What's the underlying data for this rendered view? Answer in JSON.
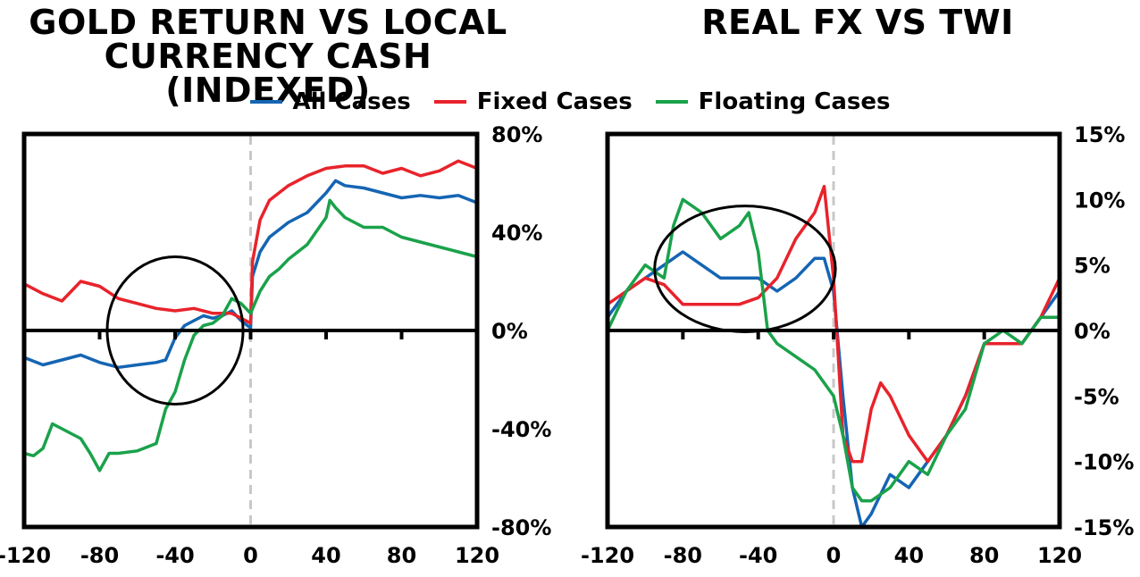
{
  "legend": {
    "all_label": "All Cases",
    "fixed_label": "Fixed Cases",
    "floating_label": "Floating Cases"
  },
  "colors": {
    "all": "#1565b3",
    "fixed": "#e8232b",
    "floating": "#1aa24a"
  },
  "chart_data": [
    {
      "type": "line",
      "title_lines": [
        "GOLD RETURN VS LOCAL",
        "CURRENCY CASH (INDEXED)"
      ],
      "xlim": [
        -120,
        120
      ],
      "ylim": [
        -80,
        80
      ],
      "x_ticks": [
        -120,
        -80,
        -40,
        0,
        40,
        80,
        120
      ],
      "y_ticks": [
        80,
        40,
        0,
        -40,
        -80
      ],
      "y_tick_labels": [
        "80%",
        "40%",
        "0%",
        "-40%",
        "-80%"
      ],
      "y_axis_side": "right",
      "grid": false,
      "reference_line_x": 0,
      "highlight_ellipse": {
        "cx": -40,
        "cy": 0,
        "rx": 36,
        "ry": 30
      },
      "series": [
        {
          "name": "All Cases",
          "key": "all",
          "x": [
            -120,
            -110,
            -100,
            -90,
            -80,
            -70,
            -60,
            -50,
            -45,
            -40,
            -35,
            -30,
            -25,
            -20,
            -15,
            -10,
            -5,
            0,
            1,
            5,
            10,
            15,
            20,
            30,
            40,
            45,
            50,
            60,
            70,
            80,
            90,
            100,
            110,
            120
          ],
          "y": [
            -11,
            -14,
            -12,
            -10,
            -13,
            -15,
            -14,
            -13,
            -12,
            -3,
            2,
            4,
            6,
            5,
            6,
            8,
            4,
            1,
            22,
            32,
            38,
            41,
            44,
            48,
            56,
            61,
            59,
            58,
            56,
            54,
            55,
            54,
            55,
            52
          ]
        },
        {
          "name": "Fixed Cases",
          "key": "fixed",
          "x": [
            -120,
            -110,
            -100,
            -90,
            -80,
            -70,
            -60,
            -50,
            -40,
            -30,
            -20,
            -10,
            -5,
            0,
            1,
            5,
            10,
            15,
            20,
            30,
            40,
            50,
            60,
            70,
            80,
            90,
            100,
            110,
            120
          ],
          "y": [
            19,
            15,
            12,
            20,
            18,
            13,
            11,
            9,
            8,
            9,
            7,
            7,
            5,
            3,
            28,
            45,
            53,
            56,
            59,
            63,
            66,
            67,
            67,
            64,
            66,
            63,
            65,
            69,
            66
          ]
        },
        {
          "name": "Floating Cases",
          "key": "floating",
          "x": [
            -120,
            -115,
            -110,
            -105,
            -100,
            -95,
            -90,
            -85,
            -80,
            -75,
            -70,
            -60,
            -50,
            -45,
            -40,
            -35,
            -30,
            -25,
            -20,
            -15,
            -10,
            -5,
            0,
            5,
            10,
            15,
            20,
            30,
            40,
            42,
            45,
            50,
            60,
            70,
            80,
            90,
            100,
            110,
            120
          ],
          "y": [
            -50,
            -51,
            -48,
            -38,
            -40,
            -42,
            -44,
            -50,
            -57,
            -50,
            -50,
            -49,
            -46,
            -32,
            -25,
            -12,
            -2,
            2,
            3,
            6,
            13,
            11,
            7,
            16,
            22,
            25,
            29,
            35,
            46,
            53,
            50,
            46,
            42,
            42,
            38,
            36,
            34,
            32,
            30
          ]
        }
      ]
    },
    {
      "type": "line",
      "title": "REAL FX VS TWI",
      "xlim": [
        -120,
        120
      ],
      "ylim": [
        -15,
        15
      ],
      "x_ticks": [
        -120,
        -80,
        -40,
        0,
        40,
        80,
        120
      ],
      "y_ticks": [
        15,
        10,
        5,
        0,
        -5,
        -10,
        -15
      ],
      "y_tick_labels": [
        "15%",
        "10%",
        "5%",
        "0%",
        "-5%",
        "-10%",
        "-15%"
      ],
      "y_axis_side": "right",
      "grid": false,
      "reference_line_x": 0,
      "highlight_ellipse": {
        "cx": -47,
        "cy": 4.7,
        "rx": 48,
        "ry": 4.8
      },
      "series": [
        {
          "name": "All Cases",
          "key": "all",
          "x": [
            -120,
            -110,
            -100,
            -90,
            -80,
            -70,
            -60,
            -50,
            -40,
            -30,
            -20,
            -10,
            -5,
            0,
            5,
            10,
            15,
            20,
            30,
            40,
            50,
            60,
            70,
            80,
            90,
            100,
            110,
            120
          ],
          "y": [
            1,
            3,
            4,
            5,
            6,
            5,
            4,
            4,
            4,
            3,
            4,
            5.5,
            5.5,
            3,
            -5,
            -12,
            -15,
            -14,
            -11,
            -12,
            -10,
            -8,
            -5,
            -1,
            -1,
            -1,
            1,
            3
          ]
        },
        {
          "name": "Fixed Cases",
          "key": "fixed",
          "x": [
            -120,
            -110,
            -100,
            -90,
            -80,
            -70,
            -60,
            -50,
            -40,
            -30,
            -20,
            -10,
            -5,
            0,
            5,
            10,
            15,
            20,
            25,
            30,
            40,
            50,
            60,
            70,
            80,
            90,
            100,
            110,
            120
          ],
          "y": [
            2,
            3,
            4,
            3.5,
            2,
            2,
            2,
            2,
            2.5,
            4,
            7,
            9,
            11,
            4,
            -8,
            -10,
            -10,
            -6,
            -4,
            -5,
            -8,
            -10,
            -8,
            -5,
            -1,
            -1,
            -1,
            1,
            4
          ]
        },
        {
          "name": "Floating Cases",
          "key": "floating",
          "x": [
            -120,
            -110,
            -100,
            -90,
            -85,
            -80,
            -70,
            -60,
            -50,
            -45,
            -40,
            -35,
            -30,
            -20,
            -10,
            -5,
            0,
            5,
            10,
            15,
            20,
            30,
            40,
            50,
            60,
            70,
            80,
            90,
            100,
            110,
            120
          ],
          "y": [
            0,
            3,
            5,
            4,
            8,
            10,
            9,
            7,
            8,
            9,
            6,
            0,
            -1,
            -2,
            -3,
            -4,
            -5,
            -8,
            -12,
            -13,
            -13,
            -12,
            -10,
            -11,
            -8,
            -6,
            -1,
            0,
            -1,
            1,
            1
          ]
        }
      ]
    }
  ]
}
